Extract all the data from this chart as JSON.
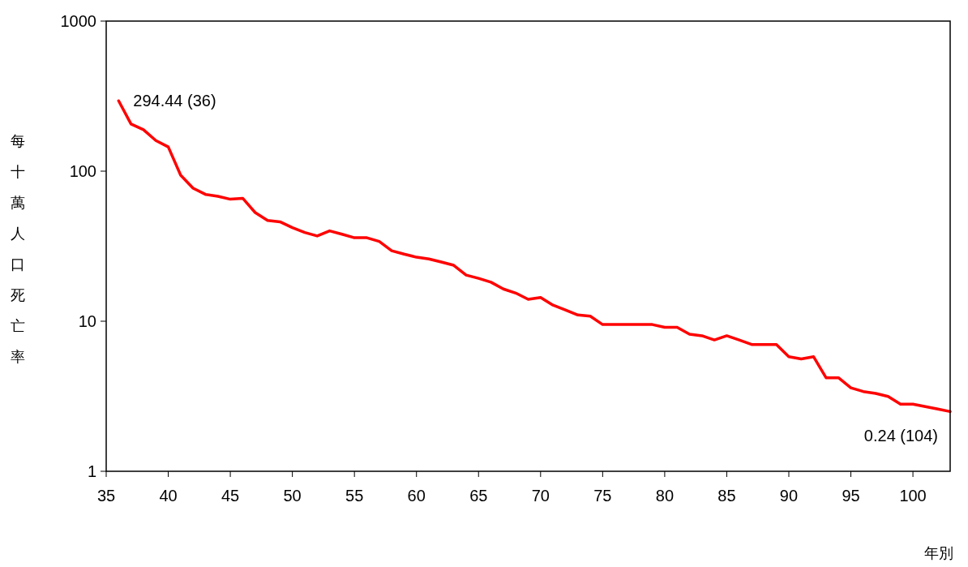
{
  "chart_data": {
    "type": "line",
    "ylabel": "每十萬人口死亡率",
    "xlabel": "年別",
    "log": true,
    "grid": false,
    "marker": "none",
    "line_style": "solid",
    "xlim": [
      35,
      103
    ],
    "xticks": [
      35,
      40,
      45,
      50,
      55,
      60,
      65,
      70,
      75,
      80,
      85,
      90,
      95,
      100
    ],
    "ylim": [
      1,
      1000
    ],
    "yticks": [
      1,
      10,
      100,
      1000
    ],
    "series": [
      {
        "color": "#ff0000",
        "x": [
          36,
          37,
          38,
          39,
          40,
          41,
          42,
          43,
          44,
          45,
          46,
          47,
          48,
          49,
          50,
          51,
          52,
          53,
          54,
          55,
          56,
          57,
          58,
          59,
          60,
          61,
          62,
          63,
          64,
          65,
          66,
          67,
          68,
          69,
          70,
          71,
          72,
          73,
          74,
          75,
          76,
          77,
          78,
          79,
          80,
          81,
          82,
          83,
          84,
          85,
          86,
          87,
          88,
          89,
          90,
          91,
          92,
          93,
          94,
          95,
          96,
          97,
          98,
          99,
          100,
          101,
          102,
          103
        ],
        "values": [
          294.44,
          206,
          189,
          160,
          145,
          94,
          77,
          70,
          68,
          65,
          66,
          53,
          47,
          46,
          42,
          39,
          37,
          40,
          38,
          36,
          36,
          34,
          29.5,
          28,
          26.7,
          26,
          24.8,
          23.6,
          20.3,
          19.3,
          18.2,
          16.4,
          15.4,
          14,
          14.4,
          12.8,
          11.9,
          11,
          10.8,
          9.5,
          9.5,
          9.5,
          9.5,
          9.5,
          9.1,
          9.1,
          8.2,
          8,
          7.5,
          8,
          7.5,
          7,
          7,
          7,
          5.8,
          5.6,
          5.8,
          4.2,
          4.2,
          3.6,
          3.4,
          3.3,
          3.15,
          2.8,
          2.8,
          2.7,
          2.6,
          2.5
        ]
      }
    ],
    "annotations": [
      {
        "text": "294.44 (36)",
        "x": 36,
        "y": 294.44
      },
      "0.24 (104)"
    ]
  }
}
